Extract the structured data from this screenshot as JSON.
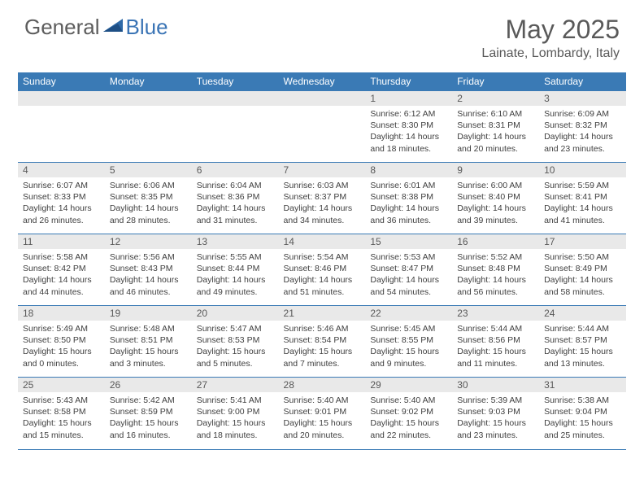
{
  "brand": {
    "part1": "General",
    "part2": "Blue"
  },
  "title": "May 2025",
  "location": "Lainate, Lombardy, Italy",
  "colors": {
    "header_bg": "#3a7ab5",
    "header_text": "#ffffff",
    "daynum_bg": "#e9e9e9",
    "rule": "#3a7ab5",
    "text": "#404040",
    "brand_gray": "#5d5d5d",
    "brand_blue": "#3a74b5"
  },
  "dow": [
    "Sunday",
    "Monday",
    "Tuesday",
    "Wednesday",
    "Thursday",
    "Friday",
    "Saturday"
  ],
  "weeks": [
    [
      null,
      null,
      null,
      null,
      {
        "n": "1",
        "sr": "6:12 AM",
        "ss": "8:30 PM",
        "dl": "14 hours and 18 minutes."
      },
      {
        "n": "2",
        "sr": "6:10 AM",
        "ss": "8:31 PM",
        "dl": "14 hours and 20 minutes."
      },
      {
        "n": "3",
        "sr": "6:09 AM",
        "ss": "8:32 PM",
        "dl": "14 hours and 23 minutes."
      }
    ],
    [
      {
        "n": "4",
        "sr": "6:07 AM",
        "ss": "8:33 PM",
        "dl": "14 hours and 26 minutes."
      },
      {
        "n": "5",
        "sr": "6:06 AM",
        "ss": "8:35 PM",
        "dl": "14 hours and 28 minutes."
      },
      {
        "n": "6",
        "sr": "6:04 AM",
        "ss": "8:36 PM",
        "dl": "14 hours and 31 minutes."
      },
      {
        "n": "7",
        "sr": "6:03 AM",
        "ss": "8:37 PM",
        "dl": "14 hours and 34 minutes."
      },
      {
        "n": "8",
        "sr": "6:01 AM",
        "ss": "8:38 PM",
        "dl": "14 hours and 36 minutes."
      },
      {
        "n": "9",
        "sr": "6:00 AM",
        "ss": "8:40 PM",
        "dl": "14 hours and 39 minutes."
      },
      {
        "n": "10",
        "sr": "5:59 AM",
        "ss": "8:41 PM",
        "dl": "14 hours and 41 minutes."
      }
    ],
    [
      {
        "n": "11",
        "sr": "5:58 AM",
        "ss": "8:42 PM",
        "dl": "14 hours and 44 minutes."
      },
      {
        "n": "12",
        "sr": "5:56 AM",
        "ss": "8:43 PM",
        "dl": "14 hours and 46 minutes."
      },
      {
        "n": "13",
        "sr": "5:55 AM",
        "ss": "8:44 PM",
        "dl": "14 hours and 49 minutes."
      },
      {
        "n": "14",
        "sr": "5:54 AM",
        "ss": "8:46 PM",
        "dl": "14 hours and 51 minutes."
      },
      {
        "n": "15",
        "sr": "5:53 AM",
        "ss": "8:47 PM",
        "dl": "14 hours and 54 minutes."
      },
      {
        "n": "16",
        "sr": "5:52 AM",
        "ss": "8:48 PM",
        "dl": "14 hours and 56 minutes."
      },
      {
        "n": "17",
        "sr": "5:50 AM",
        "ss": "8:49 PM",
        "dl": "14 hours and 58 minutes."
      }
    ],
    [
      {
        "n": "18",
        "sr": "5:49 AM",
        "ss": "8:50 PM",
        "dl": "15 hours and 0 minutes."
      },
      {
        "n": "19",
        "sr": "5:48 AM",
        "ss": "8:51 PM",
        "dl": "15 hours and 3 minutes."
      },
      {
        "n": "20",
        "sr": "5:47 AM",
        "ss": "8:53 PM",
        "dl": "15 hours and 5 minutes."
      },
      {
        "n": "21",
        "sr": "5:46 AM",
        "ss": "8:54 PM",
        "dl": "15 hours and 7 minutes."
      },
      {
        "n": "22",
        "sr": "5:45 AM",
        "ss": "8:55 PM",
        "dl": "15 hours and 9 minutes."
      },
      {
        "n": "23",
        "sr": "5:44 AM",
        "ss": "8:56 PM",
        "dl": "15 hours and 11 minutes."
      },
      {
        "n": "24",
        "sr": "5:44 AM",
        "ss": "8:57 PM",
        "dl": "15 hours and 13 minutes."
      }
    ],
    [
      {
        "n": "25",
        "sr": "5:43 AM",
        "ss": "8:58 PM",
        "dl": "15 hours and 15 minutes."
      },
      {
        "n": "26",
        "sr": "5:42 AM",
        "ss": "8:59 PM",
        "dl": "15 hours and 16 minutes."
      },
      {
        "n": "27",
        "sr": "5:41 AM",
        "ss": "9:00 PM",
        "dl": "15 hours and 18 minutes."
      },
      {
        "n": "28",
        "sr": "5:40 AM",
        "ss": "9:01 PM",
        "dl": "15 hours and 20 minutes."
      },
      {
        "n": "29",
        "sr": "5:40 AM",
        "ss": "9:02 PM",
        "dl": "15 hours and 22 minutes."
      },
      {
        "n": "30",
        "sr": "5:39 AM",
        "ss": "9:03 PM",
        "dl": "15 hours and 23 minutes."
      },
      {
        "n": "31",
        "sr": "5:38 AM",
        "ss": "9:04 PM",
        "dl": "15 hours and 25 minutes."
      }
    ]
  ],
  "labels": {
    "sunrise": "Sunrise:",
    "sunset": "Sunset:",
    "daylight": "Daylight:"
  }
}
